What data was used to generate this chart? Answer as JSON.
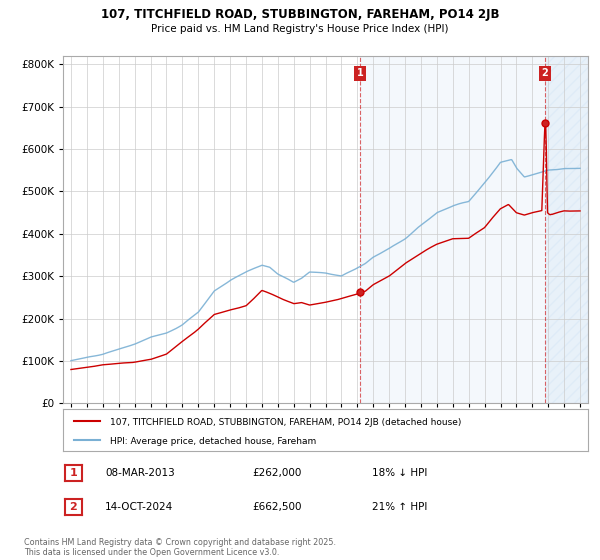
{
  "title": "107, TITCHFIELD ROAD, STUBBINGTON, FAREHAM, PO14 2JB",
  "subtitle": "Price paid vs. HM Land Registry's House Price Index (HPI)",
  "legend_line1": "107, TITCHFIELD ROAD, STUBBINGTON, FAREHAM, PO14 2JB (detached house)",
  "legend_line2": "HPI: Average price, detached house, Fareham",
  "sale1_label": "1",
  "sale1_date": "08-MAR-2013",
  "sale1_price": "£262,000",
  "sale1_hpi": "18% ↓ HPI",
  "sale1_year": 2013.18,
  "sale1_value": 262000,
  "sale2_label": "2",
  "sale2_date": "14-OCT-2024",
  "sale2_price": "£662,500",
  "sale2_hpi": "21% ↑ HPI",
  "sale2_year": 2024.79,
  "sale2_value": 662500,
  "background_color": "#ffffff",
  "grid_color": "#cccccc",
  "red_line_color": "#cc0000",
  "blue_line_color": "#7ab0d4",
  "shade_color": "#ddeeff",
  "footnote": "Contains HM Land Registry data © Crown copyright and database right 2025.\nThis data is licensed under the Open Government Licence v3.0.",
  "ylim": [
    0,
    820000
  ],
  "xlim_start": 1994.5,
  "xlim_end": 2027.5,
  "badge_color": "#cc2222"
}
